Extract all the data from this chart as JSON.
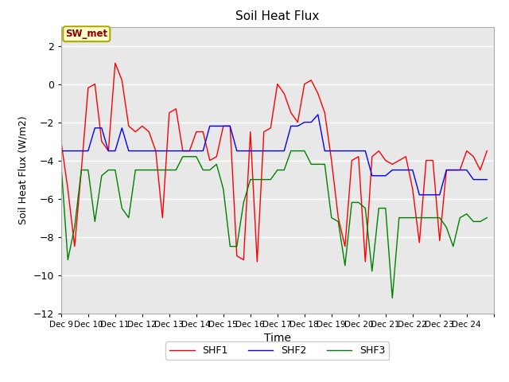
{
  "title": "Soil Heat Flux",
  "xlabel": "Time",
  "ylabel": "Soil Heat Flux (W/m2)",
  "xlim": [
    0,
    16
  ],
  "ylim": [
    -12,
    3
  ],
  "yticks": [
    2,
    0,
    -2,
    -4,
    -6,
    -8,
    -10,
    -12
  ],
  "series_labels": [
    "SHF1",
    "SHF2",
    "SHF3"
  ],
  "series_colors": [
    "red",
    "blue",
    "green"
  ],
  "background_color": "#e8e8e8",
  "grid_color": "white",
  "annotation_label": "SW_met",
  "annotation_facecolor": "#ffffcc",
  "annotation_edgecolor": "#aaaa00",
  "annotation_textcolor": "#880000",
  "shf1": [
    -3.0,
    -5.5,
    -8.5,
    -4.5,
    -0.2,
    0.0,
    -3.0,
    -3.5,
    1.1,
    0.2,
    -2.2,
    -2.5,
    -2.2,
    -2.5,
    -3.5,
    -7.0,
    -1.5,
    -1.3,
    -3.5,
    -3.5,
    -2.5,
    -2.5,
    -4.0,
    -3.8,
    -2.2,
    -2.2,
    -9.0,
    -9.2,
    -2.5,
    -9.3,
    -2.5,
    -2.3,
    0.0,
    -0.5,
    -1.5,
    -2.0,
    0.0,
    0.2,
    -0.5,
    -1.5,
    -4.0,
    -7.0,
    -8.5,
    -4.0,
    -3.8,
    -9.3,
    -3.8,
    -3.5,
    -4.0,
    -4.2,
    -4.0,
    -3.8,
    -5.5,
    -8.3,
    -4.0,
    -4.0,
    -8.2,
    -4.5,
    -4.5,
    -4.5,
    -3.5,
    -3.8,
    -4.5,
    -3.5
  ],
  "shf2": [
    -3.5,
    -3.5,
    -3.5,
    -3.5,
    -3.5,
    -2.3,
    -2.3,
    -3.5,
    -3.5,
    -2.3,
    -3.5,
    -3.5,
    -3.5,
    -3.5,
    -3.5,
    -3.5,
    -3.5,
    -3.5,
    -3.5,
    -3.5,
    -3.5,
    -3.5,
    -2.2,
    -2.2,
    -2.2,
    -2.2,
    -3.5,
    -3.5,
    -3.5,
    -3.5,
    -3.5,
    -3.5,
    -3.5,
    -3.5,
    -2.2,
    -2.2,
    -2.0,
    -2.0,
    -1.6,
    -3.5,
    -3.5,
    -3.5,
    -3.5,
    -3.5,
    -3.5,
    -3.5,
    -4.8,
    -4.8,
    -4.8,
    -4.5,
    -4.5,
    -4.5,
    -4.5,
    -5.8,
    -5.8,
    -5.8,
    -5.8,
    -4.5,
    -4.5,
    -4.5,
    -4.5,
    -5.0,
    -5.0,
    -5.0
  ],
  "shf3": [
    -4.2,
    -9.2,
    -7.5,
    -4.5,
    -4.5,
    -7.2,
    -4.8,
    -4.5,
    -4.5,
    -6.5,
    -7.0,
    -4.5,
    -4.5,
    -4.5,
    -4.5,
    -4.5,
    -4.5,
    -4.5,
    -3.8,
    -3.8,
    -3.8,
    -4.5,
    -4.5,
    -4.2,
    -5.5,
    -8.5,
    -8.5,
    -6.2,
    -5.0,
    -5.0,
    -5.0,
    -5.0,
    -4.5,
    -4.5,
    -3.5,
    -3.5,
    -3.5,
    -4.2,
    -4.2,
    -4.2,
    -7.0,
    -7.2,
    -9.5,
    -6.2,
    -6.2,
    -6.5,
    -9.8,
    -6.5,
    -6.5,
    -11.2,
    -7.0,
    -7.0,
    -7.0,
    -7.0,
    -7.0,
    -7.0,
    -7.0,
    -7.5,
    -8.5,
    -7.0,
    -6.8,
    -7.2,
    -7.2,
    -7.0
  ]
}
